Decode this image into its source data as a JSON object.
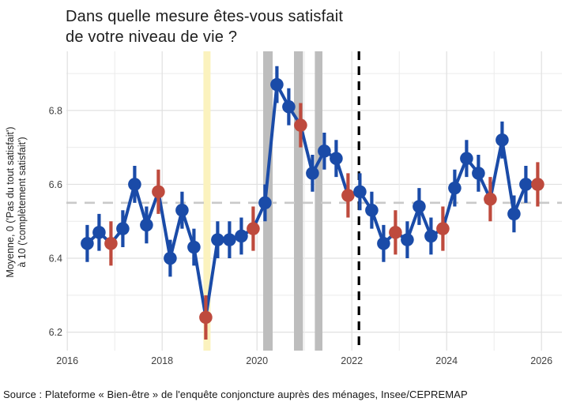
{
  "title": {
    "line1": "Dans quelle mesure êtes-vous satisfait",
    "line2": "de votre niveau de vie ?"
  },
  "y_axis": {
    "label_line1": "Moyenne, 0 ('Pas du tout satisfait')",
    "label_line2": "à 10 ('complètement satisfait')",
    "tick_labels": [
      "6.2",
      "6.4",
      "6.6",
      "6.8"
    ]
  },
  "x_axis": {
    "tick_labels": [
      "2016",
      "2018",
      "2020",
      "2022",
      "2024",
      "2026"
    ]
  },
  "source": {
    "text": "Source : Plateforme « Bien-être » de l'enquête conjoncture auprès des ménages, Insee/CEPREMAP"
  },
  "colors": {
    "blue": "#1A4BA8",
    "red": "#BE4A3D",
    "yellow": "#FBF2BE",
    "gray": "#BDBDBD",
    "mean_dash": "#C9C9C9",
    "vline": "#000000",
    "grid_major": "#E0E0E0",
    "grid_minor": "#EBEBEB"
  },
  "chart_data": {
    "type": "line",
    "title": "Dans quelle mesure êtes-vous satisfait de votre niveau de vie ?",
    "ylabel": "Moyenne, 0 ('Pas du tout satisfait') à 10 ('complètement satisfait')",
    "xlim": [
      2015.98,
      2026.43
    ],
    "ylim": [
      6.15,
      6.96
    ],
    "xticks": [
      2016,
      2018,
      2020,
      2022,
      2024,
      2026
    ],
    "yticks": [
      6.2,
      6.4,
      6.6,
      6.8
    ],
    "grid": {
      "x_step_years": 1,
      "y_step": 0.1
    },
    "legend": "none",
    "mean_reference_line": 6.55,
    "vertical_dashed_line_x": 2022.15,
    "highlight_bands": [
      {
        "x_from": 2018.87,
        "x_to": 2019.02,
        "color_key": "yellow"
      },
      {
        "x_from": 2020.13,
        "x_to": 2020.33,
        "color_key": "gray"
      },
      {
        "x_from": 2020.78,
        "x_to": 2020.97,
        "color_key": "gray"
      },
      {
        "x_from": 2021.22,
        "x_to": 2021.38,
        "color_key": "gray"
      }
    ],
    "points": [
      {
        "x": 2016.42,
        "value": 6.44,
        "err": 0.05,
        "color_key": "blue"
      },
      {
        "x": 2016.67,
        "value": 6.47,
        "err": 0.05,
        "color_key": "blue"
      },
      {
        "x": 2016.92,
        "value": 6.44,
        "err": 0.06,
        "color_key": "red"
      },
      {
        "x": 2017.17,
        "value": 6.48,
        "err": 0.05,
        "color_key": "blue"
      },
      {
        "x": 2017.42,
        "value": 6.6,
        "err": 0.05,
        "color_key": "blue"
      },
      {
        "x": 2017.67,
        "value": 6.49,
        "err": 0.05,
        "color_key": "blue"
      },
      {
        "x": 2017.92,
        "value": 6.58,
        "err": 0.06,
        "color_key": "red"
      },
      {
        "x": 2018.17,
        "value": 6.4,
        "err": 0.05,
        "color_key": "blue"
      },
      {
        "x": 2018.42,
        "value": 6.53,
        "err": 0.05,
        "color_key": "blue"
      },
      {
        "x": 2018.67,
        "value": 6.43,
        "err": 0.05,
        "color_key": "blue"
      },
      {
        "x": 2018.92,
        "value": 6.24,
        "err": 0.06,
        "color_key": "red"
      },
      {
        "x": 2019.17,
        "value": 6.45,
        "err": 0.05,
        "color_key": "blue"
      },
      {
        "x": 2019.42,
        "value": 6.45,
        "err": 0.05,
        "color_key": "blue"
      },
      {
        "x": 2019.67,
        "value": 6.46,
        "err": 0.05,
        "color_key": "blue"
      },
      {
        "x": 2019.92,
        "value": 6.48,
        "err": 0.06,
        "color_key": "red"
      },
      {
        "x": 2020.17,
        "value": 6.55,
        "err": 0.05,
        "color_key": "blue"
      },
      {
        "x": 2020.42,
        "value": 6.87,
        "err": 0.05,
        "color_key": "blue"
      },
      {
        "x": 2020.67,
        "value": 6.81,
        "err": 0.05,
        "color_key": "blue"
      },
      {
        "x": 2020.92,
        "value": 6.76,
        "err": 0.06,
        "color_key": "red"
      },
      {
        "x": 2021.17,
        "value": 6.63,
        "err": 0.05,
        "color_key": "blue"
      },
      {
        "x": 2021.42,
        "value": 6.69,
        "err": 0.05,
        "color_key": "blue"
      },
      {
        "x": 2021.67,
        "value": 6.67,
        "err": 0.05,
        "color_key": "blue"
      },
      {
        "x": 2021.92,
        "value": 6.57,
        "err": 0.06,
        "color_key": "red"
      },
      {
        "x": 2022.17,
        "value": 6.58,
        "err": 0.05,
        "color_key": "blue"
      },
      {
        "x": 2022.42,
        "value": 6.53,
        "err": 0.05,
        "color_key": "blue"
      },
      {
        "x": 2022.67,
        "value": 6.44,
        "err": 0.05,
        "color_key": "blue"
      },
      {
        "x": 2022.92,
        "value": 6.47,
        "err": 0.06,
        "color_key": "red"
      },
      {
        "x": 2023.17,
        "value": 6.45,
        "err": 0.05,
        "color_key": "blue"
      },
      {
        "x": 2023.42,
        "value": 6.54,
        "err": 0.05,
        "color_key": "blue"
      },
      {
        "x": 2023.67,
        "value": 6.46,
        "err": 0.05,
        "color_key": "blue"
      },
      {
        "x": 2023.92,
        "value": 6.48,
        "err": 0.06,
        "color_key": "red"
      },
      {
        "x": 2024.17,
        "value": 6.59,
        "err": 0.05,
        "color_key": "blue"
      },
      {
        "x": 2024.42,
        "value": 6.67,
        "err": 0.05,
        "color_key": "blue"
      },
      {
        "x": 2024.67,
        "value": 6.63,
        "err": 0.05,
        "color_key": "blue"
      },
      {
        "x": 2024.92,
        "value": 6.56,
        "err": 0.06,
        "color_key": "red"
      },
      {
        "x": 2025.17,
        "value": 6.72,
        "err": 0.05,
        "color_key": "blue"
      },
      {
        "x": 2025.42,
        "value": 6.52,
        "err": 0.05,
        "color_key": "blue"
      },
      {
        "x": 2025.67,
        "value": 6.6,
        "err": 0.05,
        "color_key": "blue"
      },
      {
        "x": 2025.92,
        "value": 6.6,
        "err": 0.06,
        "color_key": "red"
      }
    ]
  }
}
